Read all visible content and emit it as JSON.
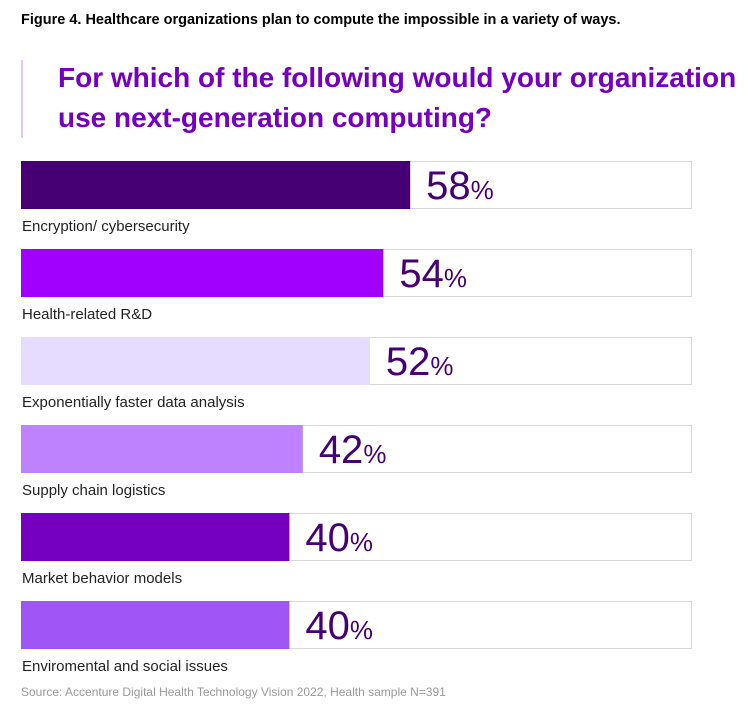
{
  "chart_data": {
    "type": "bar",
    "figure_title": "Figure 4. Healthcare organizations plan to compute the impossible in a variety of ways.",
    "title": "For which of the following would your organization use next-generation computing?",
    "categories": [
      "Encryption/ cybersecurity",
      "Health-related R&D",
      "Exponentially faster data analysis",
      "Supply chain logistics",
      "Market behavior models",
      "Enviromental and social issues"
    ],
    "values": [
      58,
      54,
      52,
      42,
      40,
      40
    ],
    "value_labels": [
      "58%",
      "54%",
      "52%",
      "42%",
      "40%",
      "40%"
    ],
    "colors": [
      "#460073",
      "#a100ff",
      "#e6dcff",
      "#be82ff",
      "#7500c0",
      "#a055f5"
    ],
    "xlim": [
      0,
      100
    ],
    "source": "Source: Accenture Digital Health Technology Vision 2022, Health sample N=391"
  }
}
